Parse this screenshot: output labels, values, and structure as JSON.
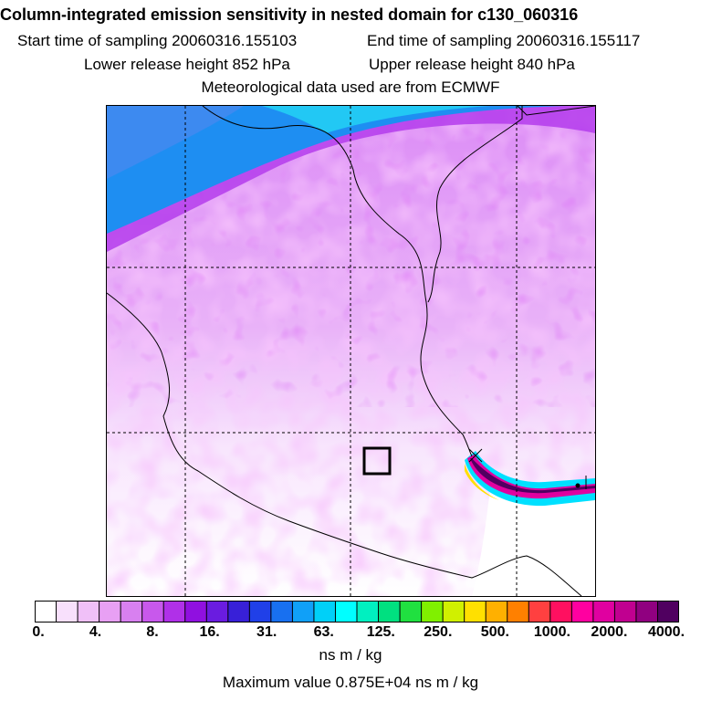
{
  "header": {
    "title": "Column-integrated emission sensitivity in nested domain for c130_060316",
    "start_time": "Start time of sampling 20060316.155103",
    "end_time": "End time of sampling 20060316.155117",
    "lower_release": "Lower release height  852 hPa",
    "upper_release": "Upper release height  840 hPa",
    "met_data": "Meteorological data used are from ECMWF"
  },
  "legend": {
    "colors": [
      "#ffffff",
      "#f8e0fc",
      "#f0c0f8",
      "#e8a0f4",
      "#d880f0",
      "#c858ec",
      "#b030e8",
      "#9010e0",
      "#6a1ce0",
      "#3820d8",
      "#2040e8",
      "#1870f0",
      "#10a0f8",
      "#00d0f8",
      "#00ffff",
      "#00f0c0",
      "#00e080",
      "#20e040",
      "#80f000",
      "#d0f000",
      "#ffe000",
      "#ffb000",
      "#ff8000",
      "#ff4040",
      "#ff1060",
      "#ff00a0",
      "#e000a0",
      "#c00090",
      "#900080",
      "#500060"
    ],
    "tick_labels": [
      "0.",
      "4.",
      "8.",
      "16.",
      "31.",
      "63.",
      "125.",
      "250.",
      "500.",
      "1000.",
      "2000.",
      "4000."
    ],
    "units": "ns m / kg",
    "max_value": "Maximum value  0.875E+04 ns m / kg"
  }
}
